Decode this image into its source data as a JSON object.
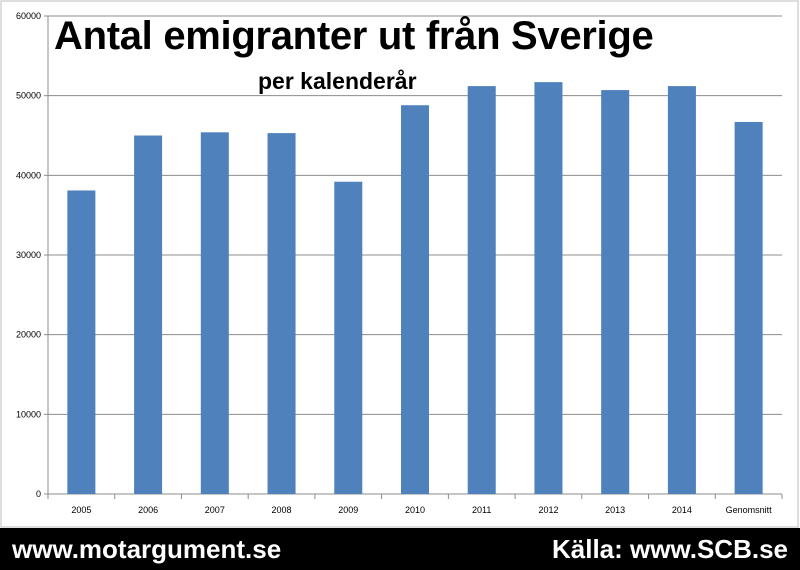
{
  "chart_data": {
    "type": "bar",
    "title": "Antal emigranter ut från Sverige",
    "subtitle": "per kalenderår",
    "categories": [
      "2005",
      "2006",
      "2007",
      "2008",
      "2009",
      "2010",
      "2011",
      "2012",
      "2013",
      "2014",
      "Genomsnitt"
    ],
    "values": [
      38100,
      45000,
      45400,
      45300,
      39200,
      48800,
      51200,
      51700,
      50700,
      51200,
      46700
    ],
    "ylim": [
      0,
      60000
    ],
    "yticks": [
      "0",
      "10000",
      "20000",
      "30000",
      "40000",
      "50000",
      "60000"
    ],
    "xlabel": "",
    "ylabel": "",
    "grid": true,
    "legend": "none",
    "bar_color": "#4f81bd"
  },
  "footer": {
    "left": "www.motargument.se",
    "right": "Källa: www.SCB.se"
  }
}
